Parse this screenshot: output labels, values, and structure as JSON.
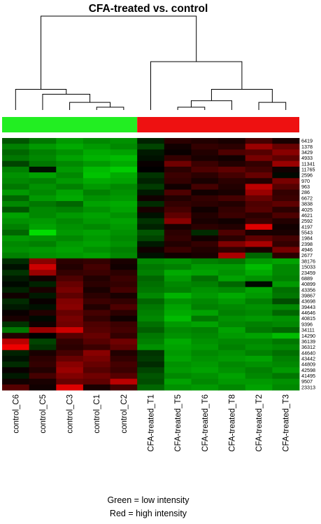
{
  "chart_data": {
    "type": "heatmap",
    "title": "CFA-treated vs. control",
    "columns": [
      "control_C6",
      "control_C5",
      "control_C3",
      "control_C1",
      "control_C2",
      "CFA-treated_T1",
      "CFA-treated_T5",
      "CFA-treated_T6",
      "CFA-treated_T8",
      "CFA-treated_T2",
      "CFA-treated_T3"
    ],
    "groups": [
      {
        "name": "control",
        "color": "#22ee22",
        "count": 5
      },
      {
        "name": "CFA-treated",
        "color": "#ee1111",
        "count": 6
      }
    ],
    "rows": [
      "6419",
      "1378",
      "3429",
      "4933",
      "11341",
      "11765",
      "2596",
      "970",
      "963",
      "286",
      "6672",
      "3838",
      "4025",
      "4621",
      "2592",
      "4197",
      "5543",
      "1984",
      "2398",
      "4946",
      "2677",
      "38176",
      "15033",
      "23459",
      "6889",
      "40899",
      "43356",
      "39867",
      "43698",
      "39443",
      "44646",
      "40815",
      "9396",
      "34111",
      "14290",
      "36139",
      "36312",
      "44640",
      "43442",
      "44809",
      "42598",
      "41495",
      "9507",
      "23313"
    ],
    "color_scale": {
      "low": "#00ff00",
      "mid": "#000000",
      "high": "#ff0000",
      "min": -3,
      "max": 3
    },
    "values": [
      [
        -1.0,
        -1.4,
        -1.8,
        -1.6,
        -1.7,
        -0.4,
        0.5,
        0.4,
        0.3,
        0.8,
        0.3
      ],
      [
        -1.5,
        -1.8,
        -2.0,
        -1.8,
        -1.6,
        -0.8,
        0.2,
        0.6,
        0.5,
        1.8,
        1.2
      ],
      [
        -1.2,
        -1.5,
        -1.7,
        -2.0,
        -1.9,
        -0.3,
        0.1,
        0.4,
        0.9,
        1.0,
        1.6
      ],
      [
        -1.4,
        -1.6,
        -1.9,
        -2.1,
        -2.2,
        -0.2,
        0.6,
        0.3,
        0.2,
        1.4,
        1.1
      ],
      [
        -0.8,
        -1.4,
        -1.6,
        -1.8,
        -2.0,
        0.1,
        1.3,
        0.7,
        0.4,
        0.6,
        1.8
      ],
      [
        -1.5,
        -0.2,
        -1.8,
        -2.2,
        -2.4,
        0.0,
        0.5,
        0.9,
        1.1,
        0.8,
        0.2
      ],
      [
        -1.7,
        -1.9,
        -1.6,
        -2.3,
        -2.0,
        -0.6,
        0.7,
        0.5,
        0.8,
        1.2,
        -0.1
      ],
      [
        -1.6,
        -1.5,
        -1.8,
        -2.0,
        -1.9,
        -0.4,
        0.6,
        0.3,
        0.5,
        0.4,
        1.4
      ],
      [
        -1.4,
        -1.7,
        -1.5,
        -1.8,
        -1.6,
        -0.7,
        0.2,
        0.8,
        0.4,
        2.2,
        1.0
      ],
      [
        -1.8,
        -1.6,
        -1.9,
        -1.5,
        -1.7,
        -0.3,
        0.9,
        0.2,
        0.3,
        1.8,
        0.6
      ],
      [
        -1.2,
        -1.8,
        -2.0,
        -1.7,
        -1.8,
        0.2,
        0.4,
        0.6,
        0.8,
        1.2,
        0.7
      ],
      [
        -1.6,
        -1.4,
        -1.2,
        -1.9,
        -2.0,
        -0.5,
        0.6,
        0.5,
        0.4,
        0.9,
        1.1
      ],
      [
        -1.0,
        -1.6,
        -1.5,
        -1.7,
        -1.9,
        0.3,
        0.8,
        0.2,
        0.6,
        1.0,
        0.5
      ],
      [
        -1.9,
        -1.6,
        -1.8,
        -1.9,
        -1.7,
        -0.2,
        1.1,
        0.4,
        0.7,
        0.5,
        0.9
      ],
      [
        -1.7,
        -1.8,
        -1.6,
        -1.8,
        -1.9,
        -0.6,
        1.6,
        0.3,
        0.2,
        0.7,
        0.4
      ],
      [
        -1.5,
        -1.9,
        -1.7,
        -1.6,
        -1.8,
        -0.4,
        0.3,
        0.5,
        0.4,
        2.6,
        0.2
      ],
      [
        -1.2,
        -2.6,
        -1.8,
        -1.9,
        -1.7,
        -1.0,
        0.5,
        -0.5,
        0.9,
        0.3,
        0.3
      ],
      [
        -1.8,
        -1.7,
        -1.6,
        -1.8,
        -1.6,
        -0.8,
        0.6,
        0.2,
        0.5,
        1.1,
        0.8
      ],
      [
        -1.6,
        -1.5,
        -1.8,
        -1.9,
        -1.7,
        -0.3,
        0.4,
        0.6,
        1.5,
        2.0,
        0.6
      ],
      [
        -1.7,
        -1.8,
        -1.9,
        -1.7,
        -1.5,
        0.2,
        0.7,
        0.4,
        0.6,
        0.3,
        1.4
      ],
      [
        -1.5,
        -1.7,
        -1.8,
        -1.9,
        -1.6,
        -0.2,
        0.2,
        0.3,
        2.0,
        -1.2,
        0.5
      ],
      [
        -0.5,
        1.6,
        0.5,
        0.6,
        0.3,
        -1.6,
        -1.7,
        -1.5,
        -1.4,
        -1.8,
        -1.9
      ],
      [
        -0.2,
        2.4,
        0.4,
        0.8,
        0.2,
        -1.4,
        -1.5,
        -1.8,
        -1.8,
        -2.2,
        -1.6
      ],
      [
        -0.6,
        1.8,
        0.6,
        0.7,
        0.5,
        -1.5,
        -2.0,
        -1.9,
        -1.7,
        -2.0,
        -1.6
      ],
      [
        -0.3,
        0.2,
        0.9,
        0.4,
        0.7,
        -1.2,
        -1.8,
        -1.3,
        -1.9,
        -1.7,
        -1.5
      ],
      [
        -0.1,
        -0.4,
        1.2,
        0.5,
        0.6,
        -1.3,
        -1.6,
        -1.5,
        -1.2,
        -0.1,
        -1.8
      ],
      [
        -0.4,
        0.3,
        1.4,
        0.3,
        0.8,
        -1.4,
        -1.5,
        -1.7,
        -1.6,
        -1.9,
        -1.3
      ],
      [
        0.2,
        -0.3,
        1.1,
        0.5,
        0.3,
        -1.6,
        -2.1,
        -1.8,
        -2.0,
        -1.8,
        -1.4
      ],
      [
        -0.5,
        0.1,
        1.5,
        0.7,
        0.6,
        -1.2,
        -1.7,
        -1.6,
        -1.8,
        -1.5,
        -0.9
      ],
      [
        -0.3,
        -0.2,
        1.6,
        0.4,
        0.9,
        -1.4,
        -1.9,
        -1.5,
        -1.6,
        -1.7,
        -1.6
      ],
      [
        0.1,
        0.4,
        1.2,
        0.8,
        0.5,
        -1.5,
        -2.0,
        -1.9,
        -1.5,
        -1.6,
        -1.2
      ],
      [
        0.3,
        -0.1,
        1.4,
        0.6,
        0.2,
        -1.6,
        -2.2,
        -1.4,
        -1.7,
        -1.8,
        -1.7
      ],
      [
        -0.6,
        0.2,
        1.3,
        0.9,
        0.7,
        -1.3,
        -1.8,
        -1.9,
        -1.6,
        -1.5,
        -1.6
      ],
      [
        -1.4,
        1.8,
        2.4,
        1.0,
        0.8,
        -1.1,
        -1.6,
        -1.5,
        -1.9,
        -1.4,
        -1.2
      ],
      [
        0.4,
        0.0,
        1.0,
        1.2,
        0.6,
        -1.4,
        -1.7,
        -1.6,
        -1.8,
        -1.9,
        -2.2
      ],
      [
        2.2,
        -0.8,
        0.6,
        1.0,
        1.3,
        -1.5,
        -2.0,
        -1.7,
        -1.6,
        -1.6,
        -1.4
      ],
      [
        2.8,
        -0.6,
        0.5,
        0.7,
        1.1,
        -1.7,
        -1.9,
        -1.8,
        -1.5,
        -1.7,
        -1.6
      ],
      [
        -0.4,
        0.3,
        0.8,
        1.6,
        0.4,
        -0.6,
        -1.8,
        -1.6,
        -1.7,
        -1.5,
        -1.3
      ],
      [
        -0.2,
        0.5,
        1.2,
        1.4,
        0.6,
        -0.7,
        -1.9,
        -1.7,
        -1.8,
        -1.9,
        -1.5
      ],
      [
        -0.5,
        0.6,
        1.6,
        1.2,
        0.8,
        -0.5,
        -1.7,
        -1.8,
        -1.6,
        -1.7,
        -1.6
      ],
      [
        0.1,
        0.4,
        1.8,
        1.0,
        0.7,
        -0.8,
        -1.8,
        -1.9,
        -1.7,
        -1.5,
        -1.8
      ],
      [
        -0.3,
        0.8,
        1.5,
        1.3,
        1.0,
        -1.0,
        -1.6,
        -1.7,
        -1.9,
        -1.6,
        -1.4
      ],
      [
        0.2,
        0.3,
        1.2,
        1.1,
        2.2,
        -0.9,
        -1.9,
        -1.6,
        -1.8,
        -1.8,
        -1.7
      ],
      [
        1.0,
        0.2,
        2.6,
        0.3,
        0.8,
        -1.2,
        -1.7,
        -1.8,
        -1.6,
        -1.9,
        -1.6
      ]
    ],
    "column_dendrogram": {
      "leaf_order": [
        "control_C6",
        "control_C5",
        "control_C3",
        "control_C1",
        "control_C2",
        "CFA-treated_T1",
        "CFA-treated_T5",
        "CFA-treated_T6",
        "CFA-treated_T8",
        "CFA-treated_T2",
        "CFA-treated_T3"
      ],
      "merges": [
        {
          "a": "control_C1",
          "b": "control_C2",
          "height": 0.3
        },
        {
          "a": "CFA-treated_T5",
          "b": "CFA-treated_T6",
          "height": 0.3
        },
        {
          "a": "CFA-treated_T2",
          "b": "CFA-treated_T3",
          "height": 0.45
        },
        {
          "a": "control_C3",
          "b": "[control_C1, control_C2]",
          "height": 0.45
        },
        {
          "a": "[T5,T6]",
          "b": "CFA-treated_T8",
          "height": 0.5
        },
        {
          "a": "[C3,C1,C2]",
          "b": "control_C5",
          "height": 0.7
        },
        {
          "a": "[T5,T6,T8]",
          "b": "[T2,T3]",
          "height": 0.85
        },
        {
          "a": "[C5,C3,C1,C2]",
          "b": "control_C6",
          "height": 0.85
        },
        {
          "a": "CFA-treated_T1",
          "b": "[T5,T6,T8,T2,T3]",
          "height": 1.7
        },
        {
          "a": "control",
          "b": "CFA-treated",
          "height": 3.1
        }
      ]
    }
  },
  "legend": {
    "line1": "Green = low intensity",
    "line2": "Red = high intensity"
  }
}
